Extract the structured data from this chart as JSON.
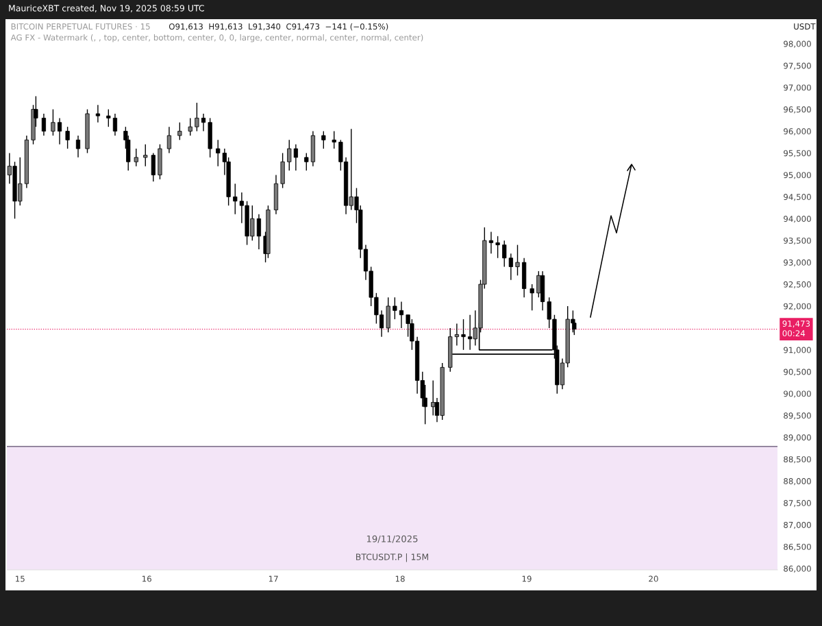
{
  "chart_data": {
    "type": "candlestick",
    "title": "BITCOIN PERPETUAL FUTURES · 15",
    "subtitle": "O91,613  H91,613  L91,340  C91,473  −141 (−0.15%)",
    "ylabel": "USDT",
    "color": "#000000",
    "x": [
      "2025-11-14T22:00",
      "2025-11-14T23:00",
      "2025-11-15T00:00",
      "2025-11-15T01:15",
      "2025-11-15T02:30",
      "2025-11-15T03:00",
      "2025-11-15T04:30",
      "2025-11-15T06:15",
      "2025-11-15T07:30",
      "2025-11-15T09:00",
      "2025-11-15T11:00",
      "2025-11-15T12:45",
      "2025-11-15T14:45",
      "2025-11-15T16:45",
      "2025-11-15T18:00",
      "2025-11-15T20:00",
      "2025-11-15T20:30",
      "2025-11-15T22:00",
      "2025-11-15T23:45",
      "2025-11-16T01:15",
      "2025-11-16T02:30",
      "2025-11-16T04:15",
      "2025-11-16T06:15",
      "2025-11-16T08:15",
      "2025-11-16T09:30",
      "2025-11-16T10:45",
      "2025-11-16T12:00",
      "2025-11-16T13:30",
      "2025-11-16T14:45",
      "2025-11-16T15:30",
      "2025-11-16T16:45",
      "2025-11-16T18:00",
      "2025-11-16T19:00",
      "2025-11-16T20:00",
      "2025-11-16T21:15",
      "2025-11-16T22:30",
      "2025-11-16T23:00",
      "2025-11-17T00:30",
      "2025-11-17T01:45",
      "2025-11-17T03:00",
      "2025-11-17T04:15",
      "2025-11-17T06:15",
      "2025-11-17T07:30",
      "2025-11-17T09:30",
      "2025-11-17T11:30",
      "2025-11-17T12:45",
      "2025-11-17T13:45",
      "2025-11-17T14:45",
      "2025-11-17T15:45",
      "2025-11-17T16:30",
      "2025-11-17T17:30",
      "2025-11-17T18:30",
      "2025-11-17T19:30",
      "2025-11-17T20:30",
      "2025-11-17T21:45",
      "2025-11-17T23:00",
      "2025-11-18T00:15",
      "2025-11-18T01:30",
      "2025-11-18T02:15",
      "2025-11-18T03:15",
      "2025-11-18T04:15",
      "2025-11-18T04:45",
      "2025-11-18T06:15",
      "2025-11-18T07:00",
      "2025-11-18T08:00",
      "2025-11-18T09:30",
      "2025-11-18T10:45",
      "2025-11-18T12:00",
      "2025-11-18T13:15",
      "2025-11-18T14:15",
      "2025-11-18T15:15",
      "2025-11-18T16:00",
      "2025-11-18T17:15",
      "2025-11-18T18:30",
      "2025-11-18T19:45",
      "2025-11-18T21:00",
      "2025-11-18T22:15",
      "2025-11-18T23:30",
      "2025-11-19T01:00",
      "2025-11-19T02:15",
      "2025-11-19T03:00",
      "2025-11-19T04:15",
      "2025-11-19T05:15",
      "2025-11-19T05:45",
      "2025-11-19T06:45",
      "2025-11-19T07:45",
      "2025-11-19T08:45",
      "2025-11-19T09:00"
    ],
    "ohlc": [
      [
        95000,
        95500,
        94800,
        95200
      ],
      [
        95200,
        95300,
        94000,
        94400
      ],
      [
        94400,
        95400,
        94300,
        94800
      ],
      [
        94800,
        95900,
        94700,
        95800
      ],
      [
        95800,
        96600,
        95700,
        96500
      ],
      [
        96500,
        96800,
        96100,
        96300
      ],
      [
        96300,
        96400,
        95900,
        96000
      ],
      [
        96000,
        96500,
        95900,
        96200
      ],
      [
        96200,
        96300,
        95700,
        96000
      ],
      [
        96000,
        96100,
        95600,
        95800
      ],
      [
        95800,
        95900,
        95400,
        95600
      ],
      [
        95600,
        96500,
        95500,
        96400
      ],
      [
        96400,
        96600,
        96200,
        96350
      ],
      [
        96350,
        96500,
        96100,
        96300
      ],
      [
        96300,
        96400,
        95900,
        96000
      ],
      [
        96000,
        96100,
        95600,
        95800
      ],
      [
        95800,
        95900,
        95100,
        95300
      ],
      [
        95300,
        95600,
        95200,
        95400
      ],
      [
        95400,
        95700,
        95200,
        95450
      ],
      [
        95450,
        95500,
        94850,
        95000
      ],
      [
        95000,
        95700,
        94900,
        95600
      ],
      [
        95600,
        96100,
        95500,
        95900
      ],
      [
        95900,
        96200,
        95800,
        96000
      ],
      [
        96000,
        96300,
        95900,
        96100
      ],
      [
        96100,
        96650,
        96000,
        96300
      ],
      [
        96300,
        96400,
        96000,
        96200
      ],
      [
        96200,
        96300,
        95400,
        95600
      ],
      [
        95600,
        95800,
        95200,
        95500
      ],
      [
        95500,
        95600,
        95000,
        95300
      ],
      [
        95300,
        95400,
        94300,
        94500
      ],
      [
        94500,
        94800,
        94100,
        94400
      ],
      [
        94400,
        94600,
        93900,
        94300
      ],
      [
        94300,
        94400,
        93400,
        93600
      ],
      [
        93600,
        94300,
        93500,
        94000
      ],
      [
        94000,
        94100,
        93300,
        93600
      ],
      [
        93600,
        93700,
        93000,
        93200
      ],
      [
        93200,
        94300,
        93100,
        94200
      ],
      [
        94200,
        95000,
        94100,
        94800
      ],
      [
        94800,
        95500,
        94700,
        95300
      ],
      [
        95300,
        95800,
        95100,
        95600
      ],
      [
        95600,
        95700,
        95100,
        95400
      ],
      [
        95400,
        95500,
        95100,
        95300
      ],
      [
        95300,
        96000,
        95200,
        95900
      ],
      [
        95900,
        96000,
        95600,
        95800
      ],
      [
        95800,
        96000,
        95600,
        95750
      ],
      [
        95750,
        95800,
        95100,
        95300
      ],
      [
        95300,
        95400,
        94100,
        94300
      ],
      [
        94300,
        96050,
        94200,
        94500
      ],
      [
        94500,
        94700,
        93900,
        94200
      ],
      [
        94200,
        94300,
        93100,
        93300
      ],
      [
        93300,
        93400,
        92600,
        92800
      ],
      [
        92800,
        92900,
        92000,
        92200
      ],
      [
        92200,
        92300,
        91600,
        91800
      ],
      [
        91800,
        91900,
        91300,
        91500
      ],
      [
        91500,
        92200,
        91400,
        92000
      ],
      [
        92000,
        92200,
        91700,
        91900
      ],
      [
        91900,
        92100,
        91500,
        91800
      ],
      [
        91800,
        91800,
        91300,
        91600
      ],
      [
        91600,
        91700,
        91000,
        91200
      ],
      [
        91200,
        91300,
        90000,
        90300
      ],
      [
        90300,
        90500,
        89700,
        89900
      ],
      [
        89900,
        90200,
        89300,
        89700
      ],
      [
        89700,
        90300,
        89500,
        89800
      ],
      [
        89800,
        89900,
        89350,
        89500
      ],
      [
        89500,
        90700,
        89400,
        90600
      ],
      [
        90600,
        91500,
        90500,
        91300
      ],
      [
        91300,
        91600,
        91100,
        91350
      ],
      [
        91350,
        91700,
        91000,
        91300
      ],
      [
        91300,
        91800,
        91000,
        91250
      ],
      [
        91250,
        91900,
        91100,
        91500
      ],
      [
        91500,
        92600,
        91400,
        92500
      ],
      [
        92500,
        93800,
        92400,
        93500
      ],
      [
        93500,
        93700,
        93200,
        93450
      ],
      [
        93450,
        93600,
        93100,
        93400
      ],
      [
        93400,
        93500,
        92900,
        93100
      ],
      [
        93100,
        93200,
        92600,
        92900
      ],
      [
        92900,
        93400,
        92700,
        93000
      ],
      [
        93000,
        93100,
        92200,
        92400
      ],
      [
        92400,
        92500,
        91900,
        92300
      ],
      [
        92300,
        92800,
        92200,
        92700
      ],
      [
        92700,
        92800,
        91900,
        92100
      ],
      [
        92100,
        92200,
        91500,
        91700
      ],
      [
        91700,
        91800,
        90800,
        91000
      ],
      [
        91000,
        91100,
        90000,
        90200
      ],
      [
        90200,
        90800,
        90100,
        90700
      ],
      [
        90700,
        92000,
        90600,
        91700
      ],
      [
        91700,
        91900,
        91400,
        91613
      ],
      [
        91613,
        91613,
        91340,
        91473
      ]
    ],
    "series": [
      {
        "type": "line",
        "color": "#000000",
        "x": [
          "2025-11-18T10:00",
          "2025-11-19T05:15"
        ],
        "values": [
          90900,
          90900
        ]
      },
      {
        "type": "line",
        "color": "#000000",
        "x": [
          "2025-11-18T15:00",
          "2025-11-18T15:00",
          "2025-11-19T04:45"
        ],
        "values": [
          91600,
          91000,
          91000
        ]
      }
    ],
    "xlim": [
      "2025-11-14T21:30",
      "2025-11-20T23:30"
    ],
    "xticks": [
      {
        "value": "2025-11-15",
        "label": "15"
      },
      {
        "value": "2025-11-16",
        "label": "16"
      },
      {
        "value": "2025-11-17",
        "label": "17"
      },
      {
        "value": "2025-11-18",
        "label": "18"
      },
      {
        "value": "2025-11-19",
        "label": "19"
      },
      {
        "value": "2025-11-20",
        "label": "20"
      }
    ],
    "ylim": [
      85970,
      98530
    ],
    "yticks": [
      {
        "value": 86000,
        "label": "86,000"
      },
      {
        "value": 86500,
        "label": "86,500"
      },
      {
        "value": 87000,
        "label": "87,000"
      },
      {
        "value": 87500,
        "label": "87,500"
      },
      {
        "value": 88000,
        "label": "88,000"
      },
      {
        "value": 88500,
        "label": "88,500"
      },
      {
        "value": 89000,
        "label": "89,000"
      },
      {
        "value": 89500,
        "label": "89,500"
      },
      {
        "value": 90000,
        "label": "90,000"
      },
      {
        "value": 90500,
        "label": "90,500"
      },
      {
        "value": 91000,
        "label": "91,000"
      },
      {
        "value": 92000,
        "label": "92,000"
      },
      {
        "value": 92500,
        "label": "92,500"
      },
      {
        "value": 93000,
        "label": "93,000"
      },
      {
        "value": 93500,
        "label": "93,500"
      },
      {
        "value": 94000,
        "label": "94,000"
      },
      {
        "value": 94500,
        "label": "94,500"
      },
      {
        "value": 95000,
        "label": "95,000"
      },
      {
        "value": 95500,
        "label": "95,500"
      },
      {
        "value": 96000,
        "label": "96,000"
      },
      {
        "value": 96500,
        "label": "96,500"
      },
      {
        "value": 97000,
        "label": "97,000"
      },
      {
        "value": 97500,
        "label": "97,500"
      },
      {
        "value": 98000,
        "label": "98,000"
      }
    ],
    "ref_lines": [
      {
        "axis": "y",
        "value": 91473,
        "label": "91,473\n00:24",
        "color": "#e91e63",
        "line_style": "dotted"
      },
      {
        "axis": "y",
        "value": 88790,
        "color": "#5b4a6b",
        "line_style": "solid"
      }
    ],
    "bands": [
      {
        "axis": "y",
        "from": 85970,
        "to": 88790,
        "color": "#f3e5f7"
      }
    ],
    "annotations": [
      "MauriceXBT created, Nov 19, 2025 08:59 UTC",
      "AG FX - Watermark (, , top, center, bottom, center, 0, 0, large, center, normal, center, normal, center)",
      "19/11/2025",
      "BTCUSDT.P | 15M"
    ],
    "grid": false,
    "legend": false
  }
}
